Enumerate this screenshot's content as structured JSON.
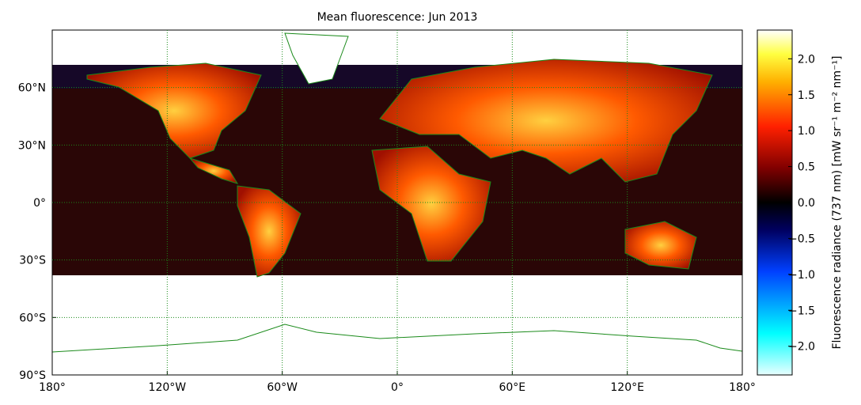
{
  "title": "Mean fluorescence: Jun 2013",
  "map": {
    "xlim": [
      -180,
      180
    ],
    "ylim": [
      -90,
      90
    ],
    "xticks": [
      {
        "value": -180,
        "label": "180°"
      },
      {
        "value": -120,
        "label": "120°W"
      },
      {
        "value": -60,
        "label": "60°W"
      },
      {
        "value": 0,
        "label": "0°"
      },
      {
        "value": 60,
        "label": "60°E"
      },
      {
        "value": 120,
        "label": "120°E"
      },
      {
        "value": 180,
        "label": "180°"
      }
    ],
    "yticks": [
      {
        "value": -90,
        "label": "90°S"
      },
      {
        "value": -60,
        "label": "60°S"
      },
      {
        "value": -30,
        "label": "30°S"
      },
      {
        "value": 0,
        "label": "0°"
      },
      {
        "value": 30,
        "label": "30°N"
      },
      {
        "value": 60,
        "label": "60°N"
      }
    ],
    "grid": true
  },
  "colorbar": {
    "label": "Fluorescence radiance (737 nm) [mW sr⁻¹ m⁻² nm⁻¹]",
    "clim": [
      -2.4,
      2.4
    ],
    "ticks": [
      {
        "value": -2,
        "label": "−2.0"
      },
      {
        "value": -1.5,
        "label": "−1.5"
      },
      {
        "value": -1,
        "label": "−1.0"
      },
      {
        "value": -0.5,
        "label": "−0.5"
      },
      {
        "value": 0,
        "label": "0.0"
      },
      0.5,
      {
        "value": 1,
        "label": "1.0"
      },
      1.5,
      {
        "value": 2,
        "label": "2.0"
      }
    ]
  }
}
